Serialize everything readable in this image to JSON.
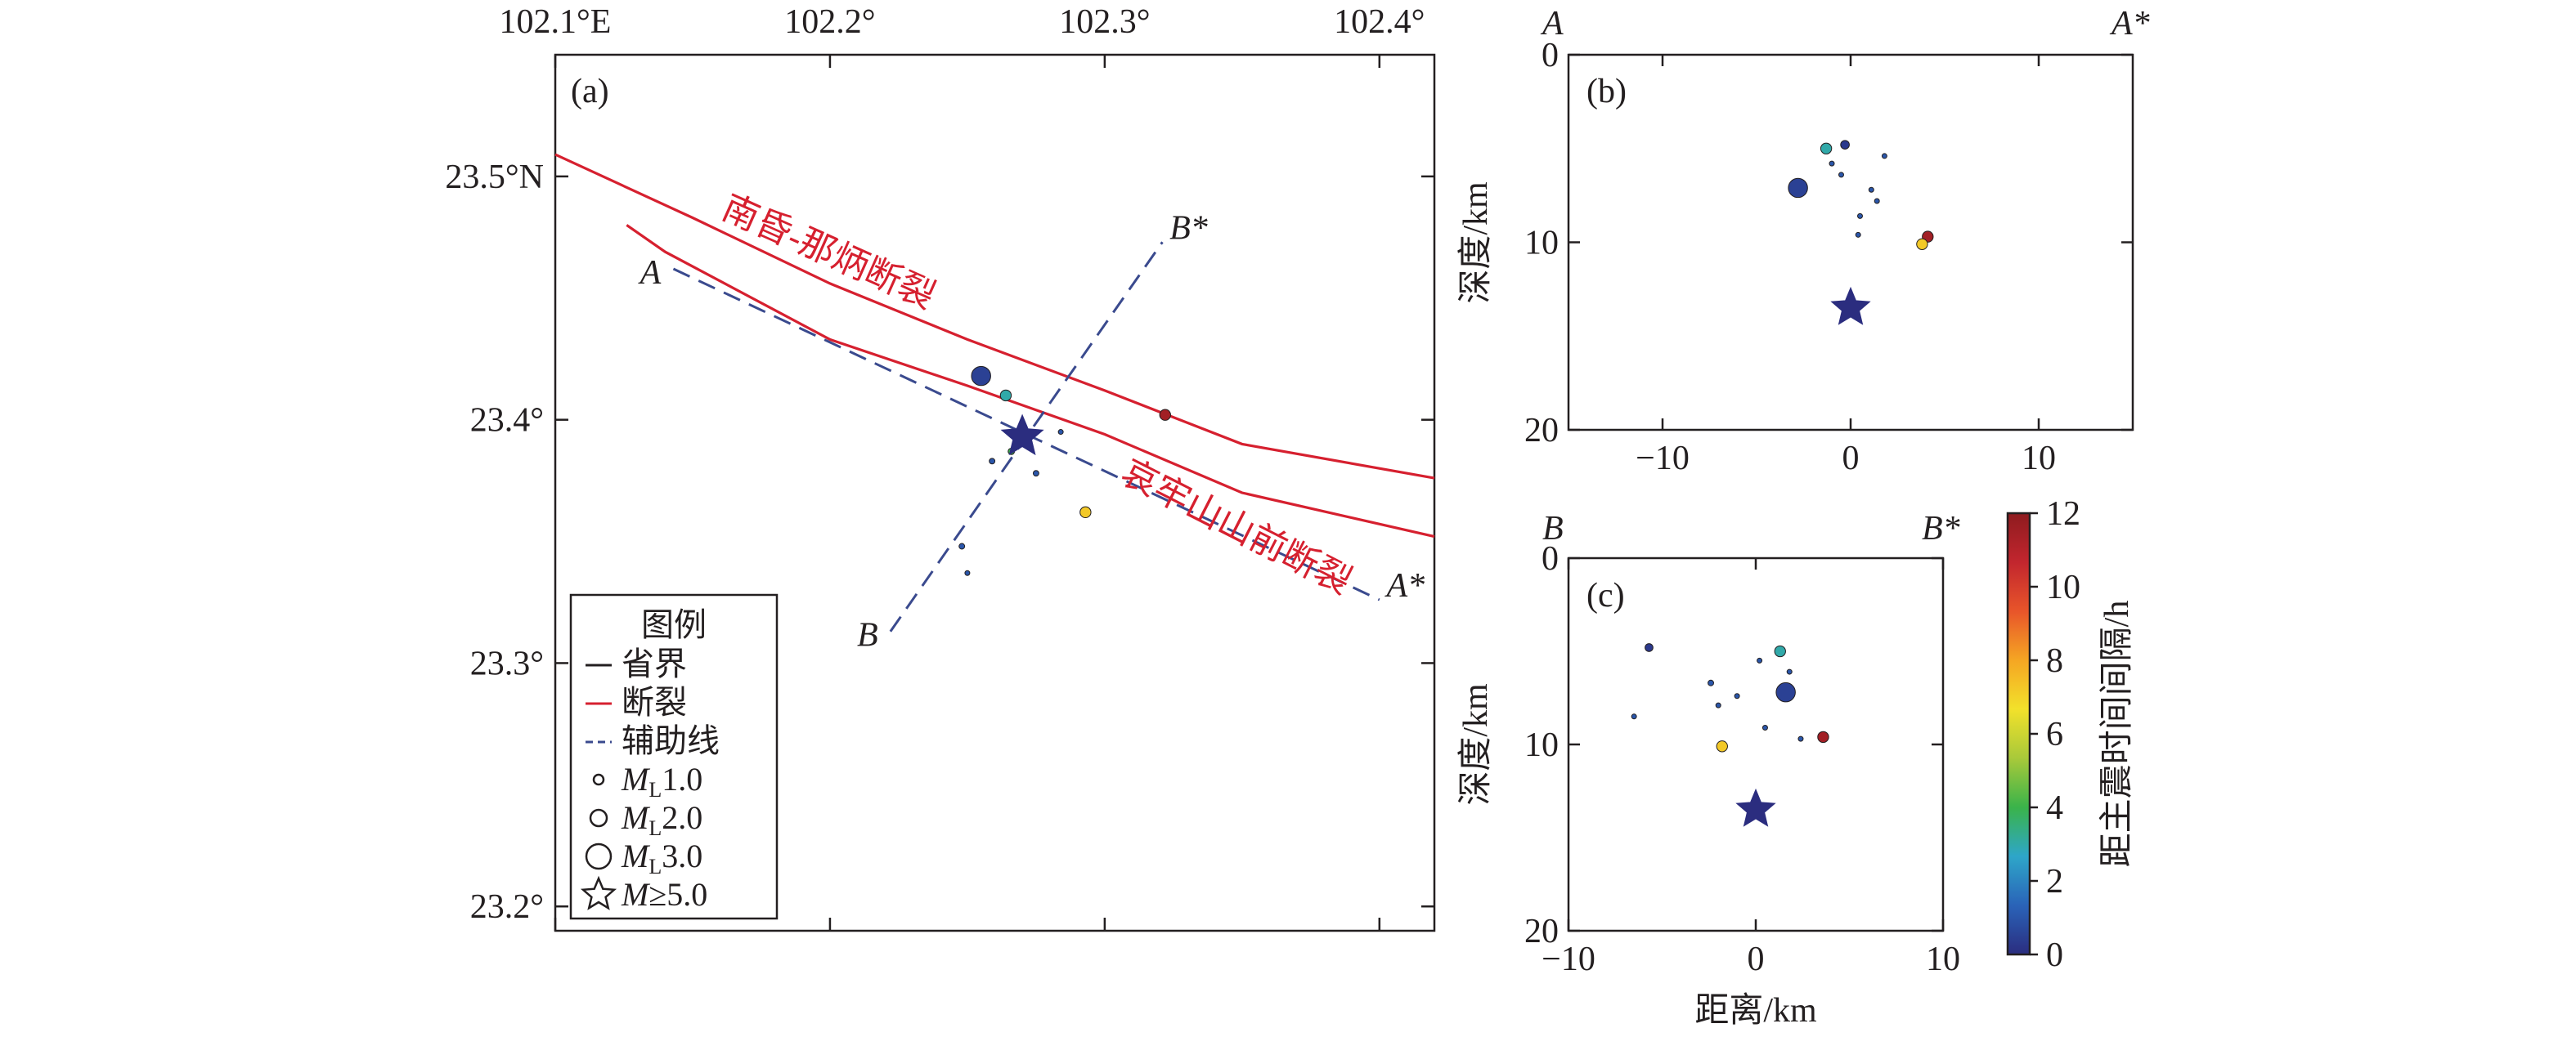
{
  "chart_data": [
    {
      "panel": "a",
      "type": "scatter",
      "label": "(a)",
      "x_ticks": [
        {
          "value": 102.1,
          "label": "102.1°E"
        },
        {
          "value": 102.2,
          "label": "102.2°"
        },
        {
          "value": 102.3,
          "label": "102.3°"
        },
        {
          "value": 102.4,
          "label": "102.4°"
        }
      ],
      "y_ticks": [
        {
          "value": 23.5,
          "label": "23.5°N"
        },
        {
          "value": 23.4,
          "label": "23.4°"
        },
        {
          "value": 23.3,
          "label": "23.3°"
        },
        {
          "value": 23.2,
          "label": "23.2°"
        }
      ],
      "xlim": [
        102.1,
        102.42
      ],
      "ylim": [
        23.19,
        23.55
      ],
      "faults": [
        {
          "name": "南昏-那炳断裂",
          "points": [
            [
              102.1,
              23.509
            ],
            [
              102.15,
              23.483
            ],
            [
              102.2,
              23.456
            ],
            [
              102.25,
              23.433
            ],
            [
              102.3,
              23.412
            ],
            [
              102.35,
              23.39
            ],
            [
              102.42,
              23.376
            ]
          ]
        },
        {
          "name": "哀牢山山前断裂",
          "points": [
            [
              102.126,
              23.48
            ],
            [
              102.14,
              23.469
            ],
            [
              102.2,
              23.433
            ],
            [
              102.25,
              23.414
            ],
            [
              102.3,
              23.394
            ],
            [
              102.35,
              23.37
            ],
            [
              102.42,
              23.352
            ]
          ]
        }
      ],
      "fault_labels": [
        "南昏-那炳断裂",
        "哀牢山山前断裂"
      ],
      "profiles": [
        {
          "name": "A-A*",
          "start_label": "A",
          "end_label": "A*",
          "start": [
            102.143,
            23.462
          ],
          "end": [
            102.4,
            23.326
          ]
        },
        {
          "name": "B-B*",
          "start_label": "B",
          "end_label": "B*",
          "start": [
            102.222,
            23.313
          ],
          "end": [
            102.321,
            23.473
          ]
        }
      ],
      "mainshock": {
        "lon": 102.27,
        "lat": 23.393,
        "magnitude": "M≥5.0"
      },
      "aftershocks": [
        {
          "lon": 102.255,
          "lat": 23.418,
          "ml": 2.3,
          "hours": 0.5
        },
        {
          "lon": 102.264,
          "lat": 23.41,
          "ml": 1.2,
          "hours": 3.0
        },
        {
          "lon": 102.322,
          "lat": 23.402,
          "ml": 1.2,
          "hours": 11.5
        },
        {
          "lon": 102.293,
          "lat": 23.362,
          "ml": 1.2,
          "hours": 7.2
        },
        {
          "lon": 102.266,
          "lat": 23.387,
          "ml": 0.6,
          "hours": 4.0
        },
        {
          "lon": 102.259,
          "lat": 23.383,
          "ml": 0.5,
          "hours": 1.0
        },
        {
          "lon": 102.275,
          "lat": 23.378,
          "ml": 0.5,
          "hours": 1.0
        },
        {
          "lon": 102.248,
          "lat": 23.348,
          "ml": 0.5,
          "hours": 1.0
        },
        {
          "lon": 102.25,
          "lat": 23.337,
          "ml": 0.4,
          "hours": 1.0
        },
        {
          "lon": 102.284,
          "lat": 23.395,
          "ml": 0.4,
          "hours": 1.0
        }
      ],
      "legend": {
        "title": "图例",
        "items": [
          {
            "symbol": "line",
            "color": "#231f20",
            "label": "省界"
          },
          {
            "symbol": "line",
            "color": "#d6202f",
            "label": "断裂"
          },
          {
            "symbol": "dash",
            "color": "#3a4a8e",
            "label": "辅助线"
          },
          {
            "symbol": "circle",
            "ml": 1.0,
            "prefix": "M",
            "sub": "L",
            "label": "1.0"
          },
          {
            "symbol": "circle",
            "ml": 2.0,
            "prefix": "M",
            "sub": "L",
            "label": "2.0"
          },
          {
            "symbol": "circle",
            "ml": 3.0,
            "prefix": "M",
            "sub": "L",
            "label": "3.0"
          },
          {
            "symbol": "star",
            "prefix": "M",
            "sub": "",
            "label": "≥5.0"
          }
        ]
      }
    },
    {
      "panel": "b",
      "type": "scatter",
      "label": "(b)",
      "left_label": "A",
      "right_label": "A*",
      "ylabel": "深度/km",
      "xlim": [
        -15,
        15
      ],
      "ylim": [
        0,
        20
      ],
      "x_ticks": [
        {
          "value": -10,
          "label": "−10"
        },
        {
          "value": 0,
          "label": "0"
        },
        {
          "value": 10,
          "label": "10"
        }
      ],
      "y_ticks": [
        {
          "value": 0,
          "label": "0"
        },
        {
          "value": 10,
          "label": "10"
        },
        {
          "value": 20,
          "label": "20"
        }
      ],
      "mainshock": {
        "x": 0,
        "depth": 13.5
      },
      "events": [
        {
          "x": -2.8,
          "depth": 7.1,
          "ml": 2.3,
          "hours": 0.5
        },
        {
          "x": -1.3,
          "depth": 5.0,
          "ml": 1.2,
          "hours": 3.0
        },
        {
          "x": -0.3,
          "depth": 4.8,
          "ml": 0.9,
          "hours": 0.3
        },
        {
          "x": 4.1,
          "depth": 9.7,
          "ml": 1.2,
          "hours": 11.5
        },
        {
          "x": 3.8,
          "depth": 10.1,
          "ml": 1.2,
          "hours": 7.2
        },
        {
          "x": -1.0,
          "depth": 5.8,
          "ml": 0.4,
          "hours": 1.0
        },
        {
          "x": -0.5,
          "depth": 6.4,
          "ml": 0.4,
          "hours": 1.0
        },
        {
          "x": 1.1,
          "depth": 7.2,
          "ml": 0.4,
          "hours": 1.0
        },
        {
          "x": 1.4,
          "depth": 7.8,
          "ml": 0.4,
          "hours": 1.0
        },
        {
          "x": 0.5,
          "depth": 8.6,
          "ml": 0.4,
          "hours": 1.0
        },
        {
          "x": 0.4,
          "depth": 9.6,
          "ml": 0.4,
          "hours": 1.0
        },
        {
          "x": 1.8,
          "depth": 5.4,
          "ml": 0.4,
          "hours": 1.0
        }
      ]
    },
    {
      "panel": "c",
      "type": "scatter",
      "label": "(c)",
      "left_label": "B",
      "right_label": "B*",
      "ylabel": "深度/km",
      "xlabel": "距离/km",
      "xlim": [
        -10,
        10
      ],
      "ylim": [
        0,
        20
      ],
      "x_ticks": [
        {
          "value": -10,
          "label": "−10"
        },
        {
          "value": 0,
          "label": "0"
        },
        {
          "value": 10,
          "label": "10"
        }
      ],
      "y_ticks": [
        {
          "value": 0,
          "label": "0"
        },
        {
          "value": 10,
          "label": "10"
        },
        {
          "value": 20,
          "label": "20"
        }
      ],
      "mainshock": {
        "x": 0,
        "depth": 13.5
      },
      "events": [
        {
          "x": 1.6,
          "depth": 7.2,
          "ml": 2.3,
          "hours": 0.5
        },
        {
          "x": 1.3,
          "depth": 5.0,
          "ml": 1.2,
          "hours": 3.0
        },
        {
          "x": 3.6,
          "depth": 9.6,
          "ml": 1.2,
          "hours": 11.5
        },
        {
          "x": -1.8,
          "depth": 10.1,
          "ml": 1.2,
          "hours": 7.2
        },
        {
          "x": -5.7,
          "depth": 4.8,
          "ml": 0.8,
          "hours": 0.3
        },
        {
          "x": -2.4,
          "depth": 6.7,
          "ml": 0.5,
          "hours": 1.0
        },
        {
          "x": -1.0,
          "depth": 7.4,
          "ml": 0.4,
          "hours": 1.0
        },
        {
          "x": -2.0,
          "depth": 7.9,
          "ml": 0.4,
          "hours": 1.0
        },
        {
          "x": 0.2,
          "depth": 5.5,
          "ml": 0.4,
          "hours": 1.0
        },
        {
          "x": 0.5,
          "depth": 9.1,
          "ml": 0.4,
          "hours": 1.0
        },
        {
          "x": 2.4,
          "depth": 9.7,
          "ml": 0.4,
          "hours": 1.0
        },
        {
          "x": -6.5,
          "depth": 8.5,
          "ml": 0.4,
          "hours": 1.0
        },
        {
          "x": 1.8,
          "depth": 6.1,
          "ml": 0.4,
          "hours": 1.0
        }
      ]
    }
  ],
  "colorbar": {
    "label": "距主震时间间隔/h",
    "range": [
      0,
      12
    ],
    "ticks": [
      0,
      2,
      4,
      6,
      8,
      10,
      12
    ],
    "colors": [
      "#2b2d7f",
      "#2a63b8",
      "#2ea6c9",
      "#3ab34a",
      "#a8c93a",
      "#f2e12b",
      "#f5a623",
      "#e8552a",
      "#c2262e",
      "#8e1b1f"
    ]
  }
}
